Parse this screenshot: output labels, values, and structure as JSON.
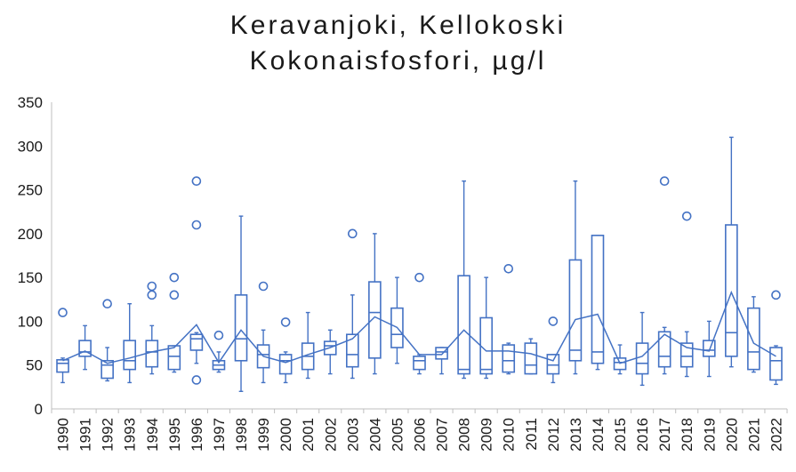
{
  "chart_data": {
    "type": "box",
    "title": "Keravanjoki, Kellokoski",
    "subtitle": "Kokonaisfosfori, µg/l",
    "xlabel": "",
    "ylabel": "",
    "ylim": [
      0,
      350
    ],
    "yticks": [
      0,
      50,
      100,
      150,
      200,
      250,
      300,
      350
    ],
    "grid": false,
    "legend": "none",
    "color": "#4472c4",
    "boxes": [
      {
        "year": "1990",
        "min": 30,
        "q1": 42,
        "median": 52,
        "q3": 56,
        "max": 58,
        "mean": 55,
        "outliers": [
          110
        ]
      },
      {
        "year": "1991",
        "min": 45,
        "q1": 60,
        "median": 65,
        "q3": 78,
        "max": 95,
        "mean": 66,
        "outliers": []
      },
      {
        "year": "1992",
        "min": 32,
        "q1": 35,
        "median": 50,
        "q3": 55,
        "max": 70,
        "mean": 52,
        "outliers": [
          120
        ]
      },
      {
        "year": "1993",
        "min": 30,
        "q1": 45,
        "median": 55,
        "q3": 78,
        "max": 120,
        "mean": 58,
        "outliers": []
      },
      {
        "year": "1994",
        "min": 40,
        "q1": 48,
        "median": 65,
        "q3": 78,
        "max": 95,
        "mean": 65,
        "outliers": [
          130,
          140
        ]
      },
      {
        "year": "1995",
        "min": 42,
        "q1": 45,
        "median": 60,
        "q3": 72,
        "max": 72,
        "mean": 70,
        "outliers": [
          130,
          150
        ]
      },
      {
        "year": "1996",
        "min": 52,
        "q1": 67,
        "median": 80,
        "q3": 85,
        "max": 87,
        "mean": 96,
        "outliers": [
          33,
          210,
          260
        ]
      },
      {
        "year": "1997",
        "min": 42,
        "q1": 45,
        "median": 50,
        "q3": 55,
        "max": 65,
        "mean": 53,
        "outliers": [
          84
        ]
      },
      {
        "year": "1998",
        "min": 20,
        "q1": 55,
        "median": 80,
        "q3": 130,
        "max": 220,
        "mean": 90,
        "outliers": []
      },
      {
        "year": "1999",
        "min": 30,
        "q1": 47,
        "median": 62,
        "q3": 73,
        "max": 90,
        "mean": 60,
        "outliers": [
          140
        ]
      },
      {
        "year": "2000",
        "min": 30,
        "q1": 40,
        "median": 55,
        "q3": 62,
        "max": 65,
        "mean": 53,
        "outliers": [
          99
        ]
      },
      {
        "year": "2001",
        "min": 35,
        "q1": 45,
        "median": 60,
        "q3": 75,
        "max": 110,
        "mean": 62,
        "outliers": []
      },
      {
        "year": "2002",
        "min": 40,
        "q1": 62,
        "median": 72,
        "q3": 77,
        "max": 90,
        "mean": 70,
        "outliers": []
      },
      {
        "year": "2003",
        "min": 35,
        "q1": 48,
        "median": 62,
        "q3": 85,
        "max": 130,
        "mean": 80,
        "outliers": [
          200
        ]
      },
      {
        "year": "2004",
        "min": 40,
        "q1": 58,
        "median": 110,
        "q3": 145,
        "max": 200,
        "mean": 105,
        "outliers": []
      },
      {
        "year": "2005",
        "min": 52,
        "q1": 70,
        "median": 85,
        "q3": 115,
        "max": 150,
        "mean": 93,
        "outliers": []
      },
      {
        "year": "2006",
        "min": 40,
        "q1": 45,
        "median": 55,
        "q3": 60,
        "max": 62,
        "mean": 62,
        "outliers": [
          150
        ]
      },
      {
        "year": "2007",
        "min": 40,
        "q1": 57,
        "median": 65,
        "q3": 70,
        "max": 70,
        "mean": 62,
        "outliers": []
      },
      {
        "year": "2008",
        "min": 35,
        "q1": 40,
        "median": 45,
        "q3": 152,
        "max": 260,
        "mean": 90,
        "outliers": []
      },
      {
        "year": "2009",
        "min": 35,
        "q1": 40,
        "median": 45,
        "q3": 104,
        "max": 150,
        "mean": 66,
        "outliers": []
      },
      {
        "year": "2010",
        "min": 40,
        "q1": 42,
        "median": 55,
        "q3": 73,
        "max": 75,
        "mean": 66,
        "outliers": [
          160
        ]
      },
      {
        "year": "2011",
        "min": 40,
        "q1": 40,
        "median": 50,
        "q3": 75,
        "max": 80,
        "mean": 63,
        "outliers": []
      },
      {
        "year": "2012",
        "min": 30,
        "q1": 40,
        "median": 50,
        "q3": 62,
        "max": 62,
        "mean": 55,
        "outliers": [
          100
        ]
      },
      {
        "year": "2013",
        "min": 40,
        "q1": 55,
        "median": 67,
        "q3": 170,
        "max": 260,
        "mean": 102,
        "outliers": []
      },
      {
        "year": "2014",
        "min": 45,
        "q1": 52,
        "median": 65,
        "q3": 198,
        "max": 198,
        "mean": 108,
        "outliers": []
      },
      {
        "year": "2015",
        "min": 40,
        "q1": 45,
        "median": 53,
        "q3": 58,
        "max": 73,
        "mean": 52,
        "outliers": []
      },
      {
        "year": "2016",
        "min": 27,
        "q1": 40,
        "median": 52,
        "q3": 75,
        "max": 110,
        "mean": 60,
        "outliers": []
      },
      {
        "year": "2017",
        "min": 40,
        "q1": 48,
        "median": 60,
        "q3": 88,
        "max": 93,
        "mean": 85,
        "outliers": [
          260
        ]
      },
      {
        "year": "2018",
        "min": 37,
        "q1": 48,
        "median": 60,
        "q3": 75,
        "max": 88,
        "mean": 70,
        "outliers": [
          220
        ]
      },
      {
        "year": "2019",
        "min": 37,
        "q1": 60,
        "median": 67,
        "q3": 78,
        "max": 100,
        "mean": 66,
        "outliers": []
      },
      {
        "year": "2020",
        "min": 48,
        "q1": 60,
        "median": 87,
        "q3": 210,
        "max": 310,
        "mean": 133,
        "outliers": []
      },
      {
        "year": "2021",
        "min": 42,
        "q1": 45,
        "median": 65,
        "q3": 115,
        "max": 128,
        "mean": 75,
        "outliers": []
      },
      {
        "year": "2022",
        "min": 28,
        "q1": 33,
        "median": 55,
        "q3": 70,
        "max": 72,
        "mean": 60,
        "outliers": [
          130
        ]
      }
    ]
  }
}
